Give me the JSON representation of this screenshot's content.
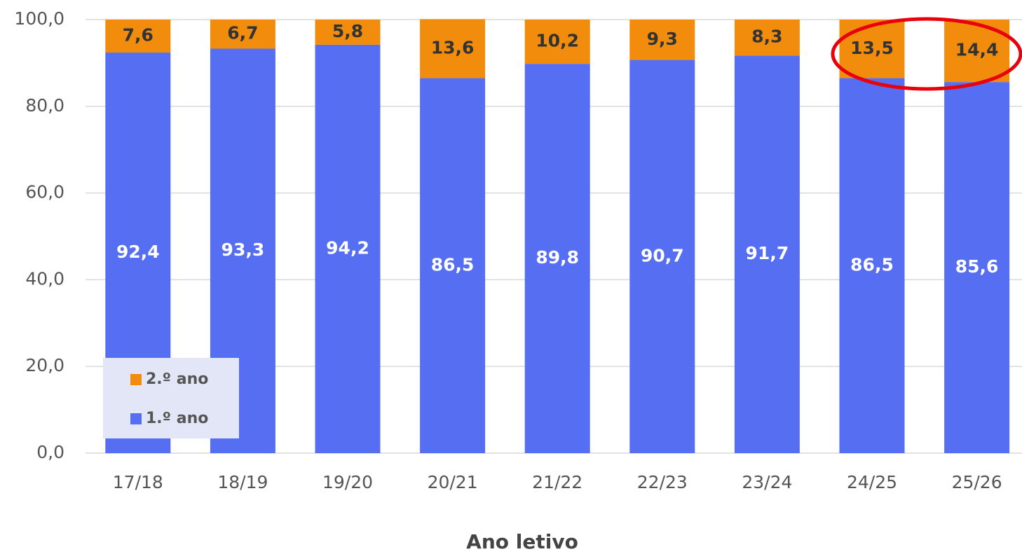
{
  "chart_data": {
    "type": "stacked_bar",
    "x_label": "Ano letivo",
    "categories": [
      "17/18",
      "18/19",
      "19/20",
      "20/21",
      "21/22",
      "22/23",
      "23/24",
      "24/25",
      "25/26"
    ],
    "series": [
      {
        "name": "1.º ano",
        "color": "#566ef2",
        "values": [
          92.4,
          93.3,
          94.2,
          86.5,
          89.8,
          90.7,
          91.7,
          86.5,
          85.6
        ],
        "value_labels": [
          "92,4",
          "93,3",
          "94,2",
          "86,5",
          "89,8",
          "90,7",
          "91,7",
          "86,5",
          "85,6"
        ]
      },
      {
        "name": "2.º ano",
        "color": "#f28c0c",
        "values": [
          7.6,
          6.7,
          5.8,
          13.6,
          10.2,
          9.3,
          8.3,
          13.5,
          14.4
        ],
        "value_labels": [
          "7,6",
          "6,7",
          "5,8",
          "13,6",
          "10,2",
          "9,3",
          "8,3",
          "13,5",
          "14,4"
        ]
      }
    ],
    "ylim": [
      0,
      100
    ],
    "yticks": [
      {
        "value": 0,
        "label": "0,0"
      },
      {
        "value": 20,
        "label": "20,0"
      },
      {
        "value": 40,
        "label": "40,0"
      },
      {
        "value": 60,
        "label": "60,0"
      },
      {
        "value": 80,
        "label": "80,0"
      },
      {
        "value": 100,
        "label": "100,0"
      }
    ],
    "grid": true,
    "legend": "lower left"
  }
}
